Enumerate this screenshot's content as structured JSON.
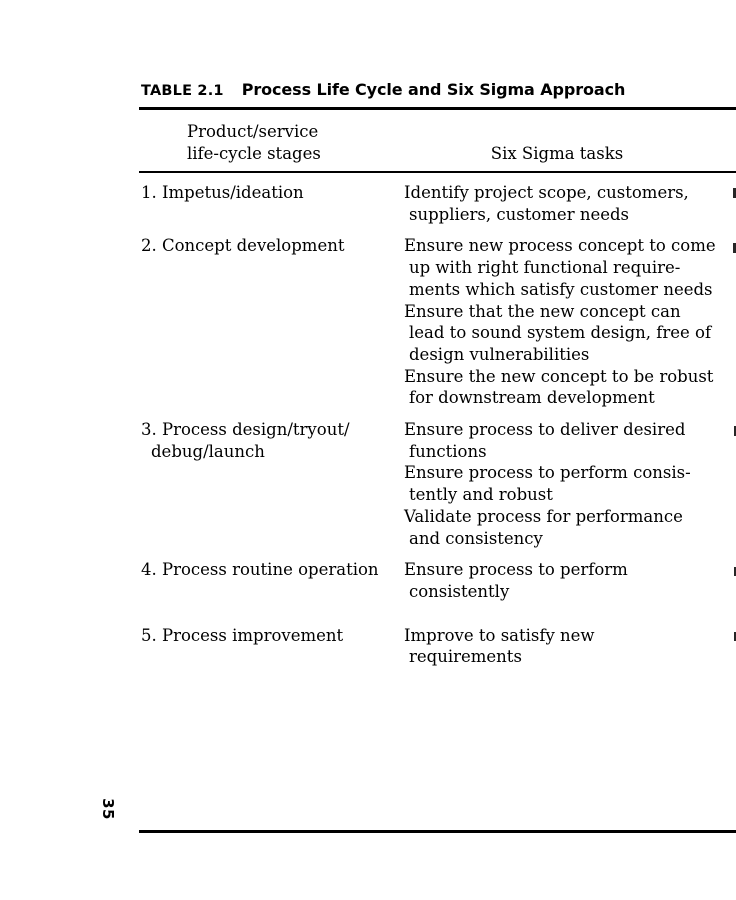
{
  "page": {
    "table_label": "TABLE 2.1",
    "table_title": "Process Life Cycle and Six Sigma Approach",
    "page_number": "35"
  },
  "colors": {
    "text": "#000000",
    "background": "#ffffff"
  },
  "table": {
    "headers": {
      "col1": "Product/service\nlife-cycle stages",
      "col2": "Six Sigma tasks"
    },
    "rows": [
      {
        "stage": "1. Impetus/ideation",
        "tasks": [
          "Identify project scope, customers,\nsuppliers, customer needs"
        ]
      },
      {
        "stage": "2. Concept development",
        "tasks": [
          "Ensure new process concept to come\nup with right functional require-\nments which satisfy customer needs",
          "Ensure that the new concept can\nlead to sound system design, free of\ndesign vulnerabilities",
          "Ensure the new concept to be robust\nfor downstream development"
        ]
      },
      {
        "stage": "3. Process design/tryout/\ndebug/launch",
        "tasks": [
          "Ensure process to deliver desired\nfunctions",
          "Ensure process to perform consis-\ntently and robust",
          "Validate process for performance\nand consistency"
        ]
      },
      {
        "stage": "4. Process routine operation",
        "tasks": [
          "Ensure process to perform\nconsistently"
        ]
      },
      {
        "stage": "5. Process improvement",
        "tasks": [
          "Improve to satisfy new\nrequirements"
        ]
      }
    ]
  }
}
